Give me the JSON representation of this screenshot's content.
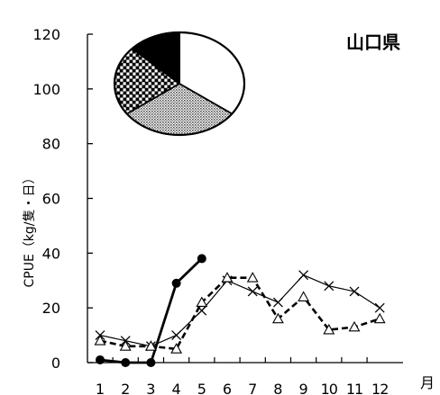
{
  "chart_data": {
    "type": "line",
    "title": "山口県",
    "xlabel": "月",
    "ylabel": "CPUE（kg/隻・日）",
    "categories": [
      "1",
      "2",
      "3",
      "4",
      "5",
      "6",
      "7",
      "8",
      "9",
      "10",
      "11",
      "12"
    ],
    "ylim": [
      0,
      120
    ],
    "yticks": [
      "0",
      "20",
      "40",
      "60",
      "80",
      "100",
      "120"
    ],
    "grid": false,
    "series": [
      {
        "style": "solid-thick",
        "marker": "filled-circle",
        "color": "#000000",
        "x": [
          1,
          2,
          3,
          4,
          5
        ],
        "values": [
          1,
          0,
          0,
          29,
          38
        ]
      },
      {
        "style": "solid-thin",
        "marker": "cross",
        "color": "#000000",
        "x": [
          1,
          2,
          3,
          4,
          5,
          6,
          7,
          8,
          9,
          10,
          11,
          12
        ],
        "values": [
          10,
          8,
          6,
          10,
          19,
          30,
          26,
          22,
          32,
          28,
          26,
          20
        ]
      },
      {
        "style": "dashed-thick",
        "marker": "open-triangle",
        "color": "#000000",
        "x": [
          1,
          2,
          3,
          4,
          5,
          6,
          7,
          8,
          9,
          10,
          11,
          12
        ],
        "values": [
          8,
          6,
          6,
          5,
          22,
          31,
          31,
          16,
          24,
          12,
          13,
          16
        ]
      }
    ],
    "inset_pie": {
      "type": "pie",
      "slices": [
        {
          "fill": "white",
          "value": 35
        },
        {
          "fill": "dotted-grey",
          "value": 30
        },
        {
          "fill": "checkered",
          "value": 22
        },
        {
          "fill": "black",
          "value": 13
        }
      ]
    }
  }
}
